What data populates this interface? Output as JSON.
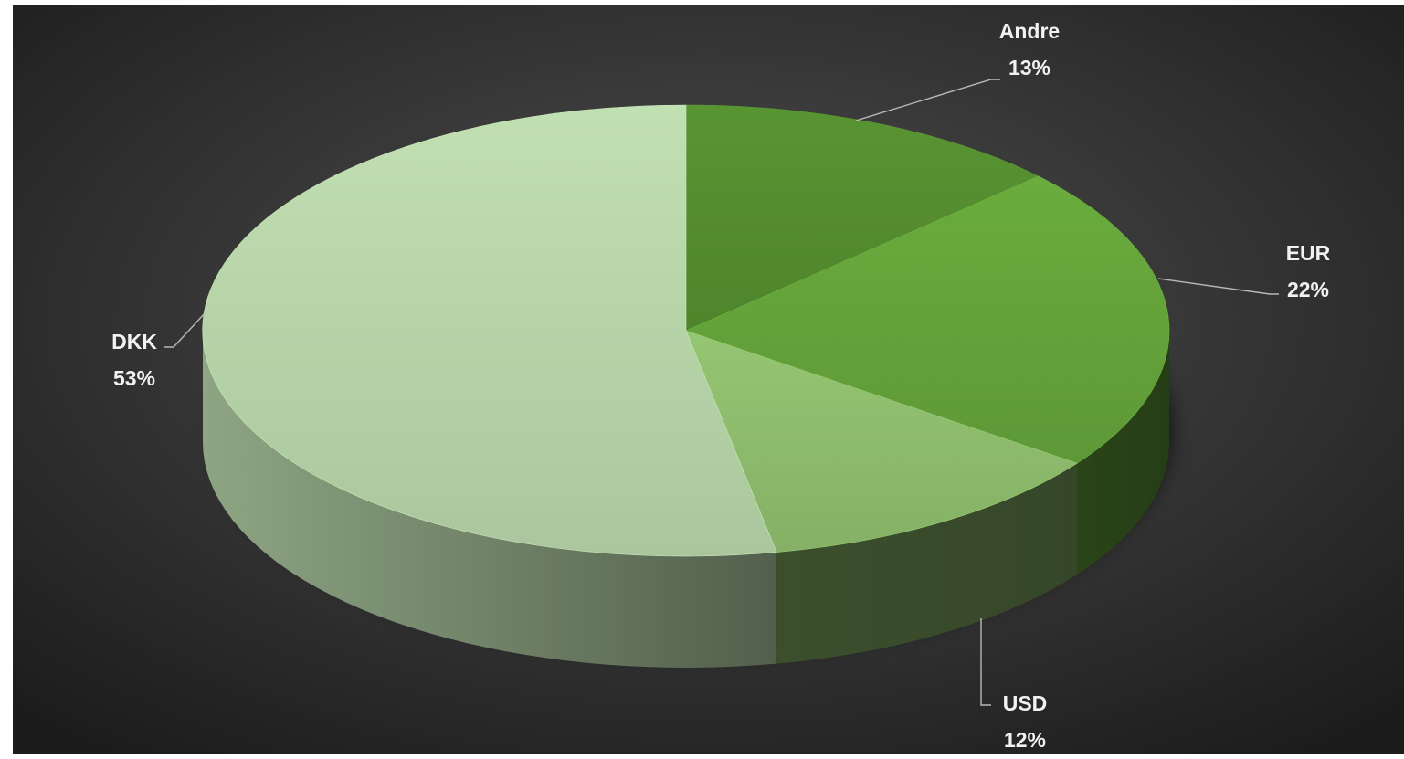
{
  "chart_data": {
    "type": "pie",
    "style": "3d",
    "categories": [
      "Andre",
      "EUR",
      "USD",
      "DKK"
    ],
    "values": [
      13,
      22,
      12,
      53
    ],
    "labels": [
      "13%",
      "22%",
      "12%",
      "53%"
    ],
    "colors": {
      "Andre": "#548c2f",
      "EUR": "#64a23a",
      "USD": "#8dbb6c",
      "DKK": "#b6d3a8",
      "background_center": "#4e4e4e",
      "background_edge": "#1e1e1e",
      "label_text": "#f2f2f2",
      "leader_line": "#b8b8b8"
    },
    "legend": "none",
    "data_labels": "category and percent, outside with leader lines"
  }
}
